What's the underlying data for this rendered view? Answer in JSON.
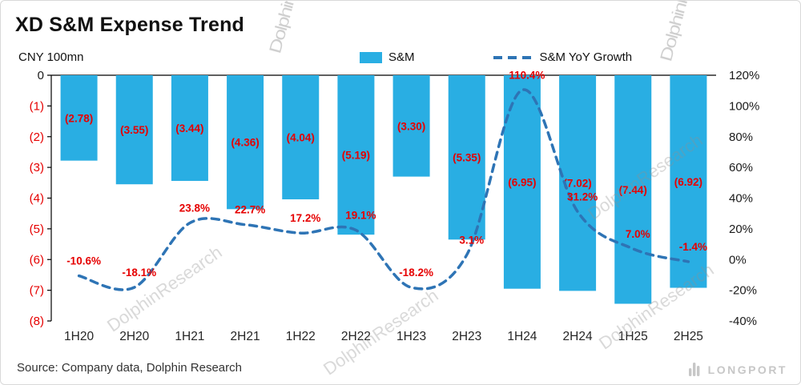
{
  "header": {
    "title": "XD S&M Expense Trend",
    "unit_label": "CNY 100mn"
  },
  "legend": {
    "bar_label": "S&M",
    "line_label": "S&M YoY Growth"
  },
  "source": {
    "text": "Source:  Company data, Dolphin Research"
  },
  "watermark": {
    "text": "DolphinResearch",
    "logo_text": "LONGPORT"
  },
  "colors": {
    "bar": "#29AEE3",
    "line": "#2E74B5",
    "negative_label": "#E60000",
    "axis_text": "#1a1a1a",
    "category_text": "#262626"
  },
  "chart_data": {
    "type": "bar+line",
    "title": "XD S&M Expense Trend",
    "ylabel_left": "CNY 100mn",
    "categories": [
      "1H20",
      "2H20",
      "1H21",
      "2H21",
      "1H22",
      "2H22",
      "1H23",
      "2H23",
      "1H24",
      "2H24",
      "1H25",
      "2H25"
    ],
    "series": [
      {
        "name": "S&M",
        "type": "bar",
        "axis": "left",
        "values": [
          -2.78,
          -3.55,
          -3.44,
          -4.36,
          -4.04,
          -5.19,
          -3.3,
          -5.35,
          -6.95,
          -7.02,
          -7.44,
          -6.92
        ],
        "labels": [
          "(2.78)",
          "(3.55)",
          "(3.44)",
          "(4.36)",
          "(4.04)",
          "(5.19)",
          "(3.30)",
          "(5.35)",
          "(6.95)",
          "(7.02)",
          "(7.44)",
          "(6.92)"
        ]
      },
      {
        "name": "S&M YoY Growth",
        "type": "line",
        "axis": "right",
        "values_pct": [
          -10.6,
          -18.1,
          23.8,
          22.7,
          17.2,
          19.1,
          -18.2,
          3.1,
          110.4,
          31.2,
          7.0,
          -1.4
        ],
        "labels": [
          "-10.6%",
          "-18.1%",
          "23.8%",
          "22.7%",
          "17.2%",
          "19.1%",
          "-18.2%",
          "3.1%",
          "110.4%",
          "31.2%",
          "7.0%",
          "-1.4%"
        ]
      }
    ],
    "left_axis": {
      "ticks": [
        "0",
        "(1)",
        "(2)",
        "(3)",
        "(4)",
        "(5)",
        "(6)",
        "(7)",
        "(8)"
      ],
      "max": 0,
      "min": -8
    },
    "right_axis": {
      "ticks": [
        "120%",
        "100%",
        "80%",
        "60%",
        "40%",
        "20%",
        "0%",
        "-20%",
        "-40%"
      ],
      "max": 120,
      "min": -40
    },
    "legend_position": "top",
    "grid": false
  }
}
